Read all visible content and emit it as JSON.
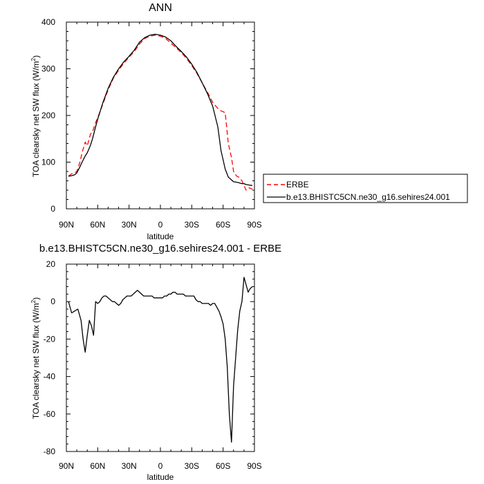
{
  "chart_data": [
    {
      "type": "line",
      "title": "ANN",
      "xlabel": "latitude",
      "ylabel": "TOA clearsky net SW flux (W/m",
      "ylabel_sup": "2",
      "ylabel_end": ")",
      "xlim": [
        90,
        -90
      ],
      "ylim": [
        0,
        400
      ],
      "xtick_values": [
        90,
        60,
        30,
        0,
        -30,
        -60,
        -90
      ],
      "xtick_labels": [
        "90N",
        "60N",
        "30N",
        "0",
        "30S",
        "60S",
        "90S"
      ],
      "ytick_values": [
        0,
        100,
        200,
        300,
        400
      ],
      "ytick_labels": [
        "0",
        "100",
        "200",
        "300",
        "400"
      ],
      "legend_position": "right",
      "series": [
        {
          "name": "ERBE",
          "color": "#ff0000",
          "style": "dashed",
          "x": [
            88,
            85,
            82,
            80,
            77,
            75,
            72,
            70,
            67,
            65,
            62,
            60,
            55,
            50,
            45,
            40,
            35,
            30,
            25,
            20,
            15,
            10,
            5,
            0,
            -5,
            -10,
            -15,
            -20,
            -25,
            -30,
            -35,
            -40,
            -45,
            -50,
            -55,
            -58,
            -60,
            -62,
            -65,
            -68,
            -70,
            -73,
            -75,
            -78,
            -80,
            -82,
            -85,
            -88
          ],
          "y": [
            70,
            75,
            77,
            80,
            100,
            120,
            143,
            135,
            160,
            165,
            185,
            195,
            225,
            255,
            280,
            297,
            312,
            325,
            337,
            353,
            365,
            370,
            372,
            370,
            365,
            355,
            345,
            335,
            322,
            307,
            290,
            270,
            250,
            228,
            215,
            210,
            208,
            206,
            140,
            110,
            80,
            70,
            68,
            60,
            50,
            40,
            45,
            42
          ]
        },
        {
          "name": "b.e13.BHISTC5CN.ne30_g16.sehires24.001",
          "color": "#000000",
          "style": "solid",
          "x": [
            88,
            85,
            82,
            80,
            77,
            75,
            72,
            70,
            67,
            65,
            62,
            60,
            55,
            50,
            45,
            40,
            35,
            30,
            25,
            20,
            15,
            10,
            5,
            0,
            -5,
            -10,
            -15,
            -20,
            -25,
            -30,
            -35,
            -40,
            -45,
            -50,
            -55,
            -58,
            -60,
            -62,
            -65,
            -68,
            -70,
            -73,
            -75,
            -78,
            -80,
            -82,
            -85,
            -88
          ],
          "y": [
            70,
            71,
            73,
            77,
            90,
            100,
            113,
            120,
            136,
            150,
            176,
            192,
            228,
            258,
            282,
            300,
            315,
            327,
            340,
            357,
            367,
            372,
            374,
            372,
            368,
            360,
            348,
            337,
            325,
            310,
            292,
            270,
            247,
            220,
            175,
            125,
            105,
            85,
            68,
            62,
            58,
            57,
            56,
            54,
            54,
            52,
            51,
            50
          ]
        }
      ]
    },
    {
      "type": "line",
      "title": "b.e13.BHISTC5CN.ne30_g16.sehires24.001 - ERBE",
      "xlabel": "latitude",
      "ylabel": "TOA clearsky net SW flux (W/m",
      "ylabel_sup": "2",
      "ylabel_end": ")",
      "xlim": [
        90,
        -90
      ],
      "ylim": [
        -80,
        20
      ],
      "xtick_values": [
        90,
        60,
        30,
        0,
        -30,
        -60,
        -90
      ],
      "xtick_labels": [
        "90N",
        "60N",
        "30N",
        "0",
        "30S",
        "60S",
        "90S"
      ],
      "ytick_values": [
        -80,
        -60,
        -40,
        -20,
        0,
        20
      ],
      "ytick_labels": [
        "-80",
        "-60",
        "-40",
        "-20",
        "0",
        "20"
      ],
      "series": [
        {
          "color": "#000000",
          "style": "solid",
          "x": [
            88,
            85,
            82,
            79,
            76,
            74,
            72,
            70,
            68,
            66,
            64,
            62,
            60,
            58,
            56,
            54,
            52,
            50,
            48,
            46,
            44,
            42,
            40,
            38,
            36,
            34,
            32,
            30,
            28,
            26,
            24,
            22,
            20,
            18,
            16,
            14,
            12,
            10,
            8,
            6,
            4,
            2,
            0,
            -2,
            -4,
            -6,
            -8,
            -10,
            -12,
            -14,
            -16,
            -18,
            -20,
            -22,
            -24,
            -26,
            -28,
            -30,
            -32,
            -34,
            -36,
            -38,
            -40,
            -42,
            -44,
            -46,
            -48,
            -50,
            -52,
            -54,
            -56,
            -58,
            -60,
            -62,
            -64,
            -66,
            -68,
            -70,
            -72,
            -74,
            -76,
            -78,
            -80,
            -82,
            -84,
            -86,
            -88
          ],
          "y": [
            0,
            -6,
            -5,
            -4,
            -10,
            -20,
            -27,
            -18,
            -10,
            -13,
            -18,
            0,
            -1,
            0,
            2,
            3,
            3,
            2,
            1,
            0,
            0,
            -1,
            -2,
            -1,
            1,
            2,
            3,
            3,
            3,
            4,
            5,
            6,
            5,
            4,
            3,
            3,
            3,
            3,
            3,
            2,
            2,
            2,
            2,
            2,
            3,
            3,
            4,
            4,
            5,
            5,
            4,
            4,
            4,
            4,
            3,
            3,
            3,
            3,
            3,
            1,
            0,
            0,
            -1,
            -1,
            -1,
            -1,
            -2,
            -1,
            -1,
            -3,
            -5,
            -8,
            -12,
            -20,
            -35,
            -60,
            -75,
            -45,
            -30,
            -15,
            -5,
            0,
            13,
            9,
            5,
            7,
            8
          ]
        }
      ]
    }
  ]
}
